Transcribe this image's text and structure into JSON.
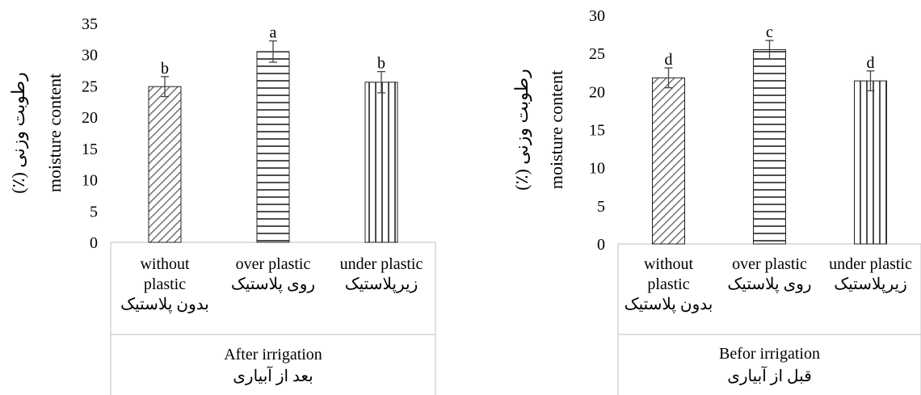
{
  "chart_data": [
    {
      "type": "bar",
      "ylabel_lines": [
        "moisture content",
        "رطوبت وزنی (٪)"
      ],
      "ylim": [
        0,
        35
      ],
      "yticks": [
        0,
        5,
        10,
        15,
        20,
        25,
        30,
        35
      ],
      "categories": [
        {
          "lines": [
            "without",
            "plastic",
            "بدون پلاستیک"
          ]
        },
        {
          "lines": [
            "over plastic",
            "روی پلاستیک"
          ]
        },
        {
          "lines": [
            "under plastic",
            "زیرپلاستیک"
          ]
        }
      ],
      "values": [
        24.9,
        30.5,
        25.6
      ],
      "errors": [
        1.6,
        1.7,
        1.7
      ],
      "letters": [
        "b",
        "a",
        "b"
      ],
      "patterns": [
        "diagonal",
        "horizontal",
        "vertical"
      ],
      "group_label_lines": [
        "After irrigation",
        "بعد از آبیاری"
      ],
      "grid": false
    },
    {
      "type": "bar",
      "ylabel_lines": [
        "moisture content",
        "رطوبت وزنی (٪)"
      ],
      "ylim": [
        0,
        30
      ],
      "yticks": [
        0,
        5,
        10,
        15,
        20,
        25,
        30
      ],
      "categories": [
        {
          "lines": [
            "without",
            "plastic",
            "بدون پلاستیک"
          ]
        },
        {
          "lines": [
            "over plastic",
            "روی پلاستیک"
          ]
        },
        {
          "lines": [
            "under plastic",
            "زیرپلاستیک"
          ]
        }
      ],
      "values": [
        21.8,
        25.5,
        21.4
      ],
      "errors": [
        1.3,
        1.2,
        1.3
      ],
      "letters": [
        "d",
        "c",
        "d"
      ],
      "patterns": [
        "diagonal",
        "horizontal",
        "vertical"
      ],
      "group_label_lines": [
        "Befor irrigation",
        "قبل از آبیاری"
      ],
      "grid": false
    }
  ]
}
